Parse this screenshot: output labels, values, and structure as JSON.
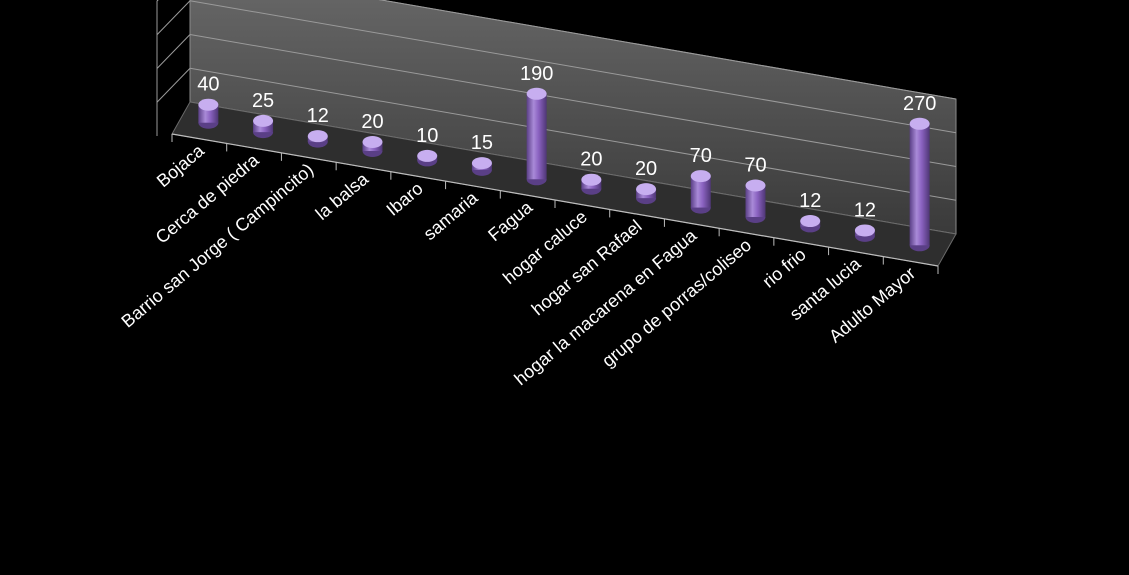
{
  "chart_data": {
    "type": "bar",
    "style": "3d-cylinder",
    "categories": [
      "Bojaca",
      "Cerca de piedra",
      "Barrio san Jorge ( Campincito)",
      "la balsa",
      "Ibaro",
      "samaria",
      "Fagua",
      "hogar caluce",
      "hogar san Rafael",
      "hogar la macarena en Fagua",
      "grupo de porras/coliseo",
      "rio frio",
      "santa lucia",
      "Adulto Mayor"
    ],
    "values": [
      40,
      25,
      12,
      20,
      10,
      15,
      190,
      20,
      20,
      70,
      70,
      12,
      12,
      270
    ],
    "data_labels": true,
    "ylim": [
      0,
      300
    ],
    "grid": true,
    "legend": "none",
    "title": "",
    "xlabel": "",
    "ylabel": "",
    "colors": {
      "background": "#000000",
      "bar_body": "#8a62c0",
      "bar_light": "#c7aef0",
      "bar_dark": "#5a3f86",
      "wall": "#5e5e5e",
      "floor": "#2e2e2e",
      "gridline": "#9a9a9a",
      "text": "#ffffff"
    }
  }
}
